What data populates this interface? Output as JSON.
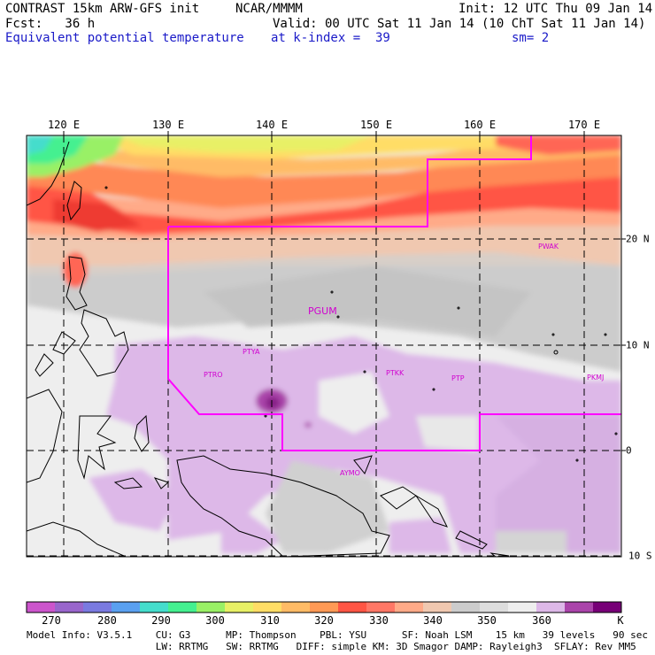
{
  "header": {
    "line1_left": "CONTRAST 15km ARW-GFS init",
    "line1_mid": "NCAR/MMMM",
    "line1_right": "Init: 12 UTC Thu 09 Jan 14",
    "line2_left": "Fcst:   36 h",
    "line2_right": "Valid: 00 UTC Sat 11 Jan 14 (10 ChT Sat 11 Jan 14)",
    "line3_left": "Equivalent potential temperature",
    "line3_mid": "at k-index =  39",
    "line3_right": "sm= 2"
  },
  "map": {
    "longitude_labels": [
      "120 E",
      "130 E",
      "140 E",
      "150 E",
      "160 E",
      "170 E"
    ],
    "latitude_labels": [
      "20 N",
      "10 N",
      "0",
      "10 S"
    ],
    "stations": [
      {
        "id": "PWAK",
        "name": "PWAK"
      },
      {
        "id": "PGUM",
        "name": "PGUM"
      },
      {
        "id": "PTYA",
        "name": "PTYA"
      },
      {
        "id": "PTRO",
        "name": "PTRO"
      },
      {
        "id": "PTKK",
        "name": "PTKK"
      },
      {
        "id": "PTPN",
        "name": "PTP"
      },
      {
        "id": "PKMJ",
        "name": "PKMJ"
      },
      {
        "id": "AYMO",
        "name": "AYMO"
      }
    ],
    "domain_boundary_color": "#ff00ff"
  },
  "colorbar": {
    "colors": [
      "#cc55cc",
      "#9966cc",
      "#7a7ae0",
      "#5aa0f0",
      "#44ddcc",
      "#44f090",
      "#99f066",
      "#e8f066",
      "#ffdd66",
      "#ffbb66",
      "#ff9955",
      "#ff5544",
      "#ff7766",
      "#ffaa88",
      "#f0c8b0",
      "#cccccc",
      "#dddddd",
      "#eeeeee",
      "#ddb8e8",
      "#aa44aa",
      "#770077"
    ],
    "labels": [
      "270",
      "280",
      "290",
      "300",
      "310",
      "320",
      "330",
      "340",
      "350",
      "360"
    ],
    "unit": "K"
  },
  "model_info": {
    "line1": "Model Info: V3.5.1    CU: G3      MP: Thompson    PBL: YSU      SF: Noah LSM    15 km   39 levels   90 sec",
    "line2": "                      LW: RRTMG   SW: RRTMG   DIFF: simple KM: 3D Smagor DAMP: Rayleigh3  SFLAY: Rev MM5"
  }
}
